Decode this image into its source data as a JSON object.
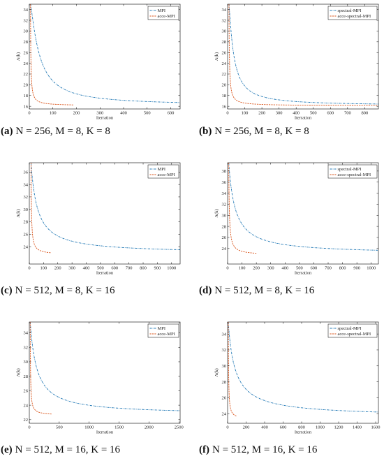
{
  "chart_data": [
    {
      "type": "line",
      "caption": {
        "letter": "(a)",
        "text": "N = 256, M = 8, K = 8"
      },
      "xlabel": "Iterration",
      "ylabel": "Λ(k)",
      "xlim": [
        0,
        640
      ],
      "ylim": [
        15.5,
        35
      ],
      "xticks": [
        0,
        100,
        200,
        300,
        400,
        500,
        600
      ],
      "yticks": [
        16,
        18,
        20,
        22,
        24,
        26,
        28,
        30,
        32,
        34
      ],
      "grid": false,
      "legend": "top-right",
      "series": [
        {
          "name": "MPI",
          "color": "#1f77b4",
          "style": "dashdot",
          "kind": "decay",
          "x0": 5,
          "y0": 35,
          "xend": 640,
          "yend": 16.15,
          "tau": 38,
          "p": 1.25
        },
        {
          "name": "acce-MPI",
          "color": "#d95319",
          "style": "dashed",
          "kind": "drop",
          "x0": 5,
          "y0": 35,
          "xend": 190,
          "yend": 16.1,
          "tau": 1.5,
          "p": 1.0
        }
      ]
    },
    {
      "type": "line",
      "caption": {
        "letter": "(b)",
        "text": "N = 256, M = 8, K = 8"
      },
      "xlabel": "Iterration",
      "ylabel": "Λ(k)",
      "xlim": [
        0,
        880
      ],
      "ylim": [
        15.5,
        35
      ],
      "xticks": [
        0,
        100,
        200,
        300,
        400,
        500,
        600,
        700,
        800
      ],
      "yticks": [
        16,
        18,
        20,
        22,
        24,
        26,
        28,
        30,
        32,
        34
      ],
      "grid": false,
      "legend": "top-right",
      "series": [
        {
          "name": "spectral-MPI",
          "color": "#1f77b4",
          "style": "dashdot",
          "kind": "decay",
          "x0": 8,
          "y0": 35,
          "xend": 880,
          "yend": 16.12,
          "tau": 28,
          "p": 1.2
        },
        {
          "name": "acce-spectral-MPI",
          "color": "#d95319",
          "style": "dashed",
          "kind": "drop",
          "x0": 8,
          "y0": 35,
          "xend": 880,
          "yend": 16.1,
          "tau": 2.5,
          "p": 1.0
        }
      ]
    },
    {
      "type": "line",
      "caption": {
        "letter": "(c)",
        "text": "N = 512, M = 8, K = 16"
      },
      "xlabel": "Iterration",
      "ylabel": "Λ(k)",
      "xlim": [
        0,
        1060
      ],
      "ylim": [
        21.2,
        37.5
      ],
      "xticks": [
        0,
        100,
        200,
        300,
        400,
        500,
        600,
        700,
        800,
        900,
        1000
      ],
      "yticks": [
        24,
        26,
        28,
        30,
        32,
        34,
        36
      ],
      "grid": false,
      "legend": "top-right",
      "series": [
        {
          "name": "MPI",
          "color": "#1f77b4",
          "style": "dashdot",
          "kind": "decay",
          "x0": 12,
          "y0": 37.5,
          "xend": 1060,
          "yend": 22.9,
          "tau": 45,
          "p": 1.0
        },
        {
          "name": "acce-MPI",
          "color": "#d95319",
          "style": "dashed",
          "kind": "drop",
          "x0": 12,
          "y0": 37.5,
          "xend": 150,
          "yend": 22.7,
          "tau": 3,
          "p": 1.0
        }
      ]
    },
    {
      "type": "line",
      "caption": {
        "letter": "(d)",
        "text": "N = 512, M = 8, K = 16"
      },
      "xlabel": "Iterration",
      "ylabel": "Λ(k)",
      "xlim": [
        0,
        1050
      ],
      "ylim": [
        21.2,
        39.5
      ],
      "xticks": [
        0,
        100,
        200,
        300,
        400,
        500,
        600,
        700,
        800,
        900,
        1000
      ],
      "yticks": [
        24,
        26,
        28,
        30,
        32,
        34,
        36,
        38
      ],
      "grid": false,
      "legend": "top-right",
      "series": [
        {
          "name": "spectral-MPI",
          "color": "#1f77b4",
          "style": "dashdot",
          "kind": "decay",
          "x0": 8,
          "y0": 39.5,
          "xend": 1050,
          "yend": 23.0,
          "tau": 45,
          "p": 1.0
        },
        {
          "name": "acce-spectral-MPI",
          "color": "#d95319",
          "style": "dashed",
          "kind": "drop",
          "x0": 8,
          "y0": 39.5,
          "xend": 200,
          "yend": 22.8,
          "tau": 4,
          "p": 1.0
        }
      ]
    },
    {
      "type": "line",
      "caption": {
        "letter": "(e)",
        "text": "N = 512, M = 16, K = 16"
      },
      "xlabel": "Iterration",
      "ylabel": "Λ(k)",
      "xlim": [
        0,
        2520
      ],
      "ylim": [
        21.5,
        35.5
      ],
      "xticks": [
        0,
        500,
        1000,
        1500,
        2000,
        2500
      ],
      "yticks": [
        22,
        24,
        26,
        28,
        30,
        32,
        34
      ],
      "grid": false,
      "legend": "top-right",
      "series": [
        {
          "name": "MPI",
          "color": "#1f77b4",
          "style": "dashdot",
          "kind": "decay",
          "x0": 15,
          "y0": 35.5,
          "xend": 2520,
          "yend": 22.7,
          "tau": 110,
          "p": 1.0
        },
        {
          "name": "acce-MPI",
          "color": "#d95319",
          "style": "dashed",
          "kind": "drop",
          "x0": 15,
          "y0": 35.5,
          "xend": 370,
          "yend": 22.6,
          "tau": 5,
          "p": 1.0
        }
      ]
    },
    {
      "type": "line",
      "caption": {
        "letter": "(f)",
        "text": "N = 512, M = 16, K = 16"
      },
      "xlabel": "Iterration",
      "ylabel": "Λ(k)",
      "xlim": [
        0,
        1630
      ],
      "ylim": [
        22.8,
        35.5
      ],
      "xticks": [
        0,
        200,
        400,
        600,
        800,
        1000,
        1200,
        1400,
        1600
      ],
      "yticks": [
        24,
        26,
        28,
        30,
        32,
        34
      ],
      "grid": false,
      "legend": "top-right",
      "series": [
        {
          "name": "spectral-MPI",
          "color": "#1f77b4",
          "style": "dashdot",
          "kind": "decay",
          "x0": 8,
          "y0": 35.5,
          "xend": 1630,
          "yend": 23.6,
          "tau": 75,
          "p": 0.95
        },
        {
          "name": "acce-spectral-MPI",
          "color": "#d95319",
          "style": "dashed",
          "kind": "drop",
          "x0": 8,
          "y0": 35.5,
          "xend": 100,
          "yend": 23.3,
          "tau": 3,
          "p": 1.0
        }
      ]
    }
  ]
}
